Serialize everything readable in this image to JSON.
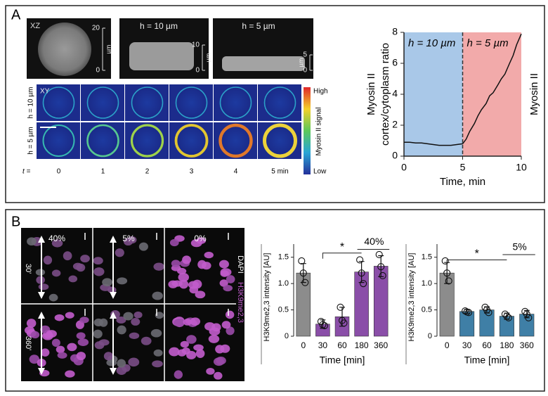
{
  "panel_a": {
    "label": "A",
    "xz": {
      "label": "XZ",
      "titles": [
        "h = 10 µm",
        "h = 5 µm"
      ],
      "scales": [
        {
          "top": "20",
          "bottom": "0",
          "unit": "µm"
        },
        {
          "top": "10",
          "bottom": "0",
          "unit": "µm"
        },
        {
          "top": "5",
          "bottom": "0",
          "unit": "µm"
        }
      ]
    },
    "xy": {
      "label": "XY",
      "rows": [
        "h = 10 µm",
        "h = 5 µm"
      ],
      "t_label": "t =",
      "times": [
        "0",
        "1",
        "2",
        "3",
        "4",
        "5 min"
      ],
      "colorbar": {
        "high": "High",
        "title": "Myosin II signal",
        "low": "Low"
      }
    }
  },
  "panel_b": {
    "label": "B",
    "columns": [
      "40%",
      "5%",
      "0%"
    ],
    "rows": [
      "30'",
      "360'"
    ],
    "stain": [
      "DAPI",
      "H3K9me2,3"
    ]
  },
  "chart_data": [
    {
      "type": "line",
      "y_label": [
        "Myosin II",
        "cortex/cytoplasm ratio"
      ],
      "x_label": "Time, min",
      "regions": [
        {
          "label": "h = 10 µm",
          "from": 0,
          "to": 5,
          "color": "#a9c8e8"
        },
        {
          "label": "h = 5 µm",
          "from": 5,
          "to": 10,
          "color": "#f2aaaa"
        }
      ],
      "x": [
        0,
        0.5,
        1,
        1.5,
        2,
        2.5,
        3,
        3.5,
        4,
        4.5,
        5,
        5.3,
        5.6,
        6,
        6.3,
        6.6,
        7,
        7.3,
        7.6,
        8,
        8.3,
        8.6,
        9,
        9.3,
        9.6,
        10
      ],
      "series": [
        {
          "name": "Myosin II",
          "color": "#111111",
          "values": [
            0.9,
            0.9,
            0.85,
            0.85,
            0.8,
            0.75,
            0.7,
            0.7,
            0.7,
            0.75,
            0.8,
            1.1,
            1.6,
            2.1,
            2.6,
            3.0,
            3.4,
            3.9,
            4.1,
            4.6,
            5.0,
            5.3,
            6.0,
            6.5,
            7.2,
            7.9
          ]
        }
      ],
      "xlim": [
        0,
        10
      ],
      "xticks": [
        0,
        5,
        10
      ],
      "ylim": [
        0,
        8
      ],
      "yticks": [
        0,
        2,
        4,
        6,
        8
      ]
    },
    {
      "type": "bar",
      "y_label": "H3K9me2,3 intensity [AU]",
      "x_label": "Time [min]",
      "categories": [
        "0",
        "30",
        "60",
        "180",
        "360"
      ],
      "values": [
        1.2,
        0.23,
        0.37,
        1.22,
        1.33
      ],
      "errors": [
        0.18,
        0.08,
        0.18,
        0.2,
        0.2
      ],
      "points": [
        [
          1.43,
          1.2,
          1.02
        ],
        [
          0.28,
          0.22,
          0.2
        ],
        [
          0.55,
          0.3,
          0.25
        ],
        [
          1.45,
          1.2,
          1.0
        ],
        [
          1.55,
          1.32,
          1.15
        ]
      ],
      "colors": [
        "#8c8c8c",
        "#8a4ea8",
        "#8a4ea8",
        "#8a4ea8",
        "#8a4ea8"
      ],
      "significance": "*",
      "group_label": "40%",
      "ylim": [
        0,
        1.75
      ],
      "yticks": [
        0,
        0.5,
        {
          "value": 1,
          "label": "1.0"
        },
        1.5
      ]
    },
    {
      "type": "bar",
      "y_label": "H3K9me2,3 intensity [AU]",
      "x_label": "Time [min]",
      "categories": [
        "0",
        "30",
        "60",
        "180",
        "360"
      ],
      "values": [
        1.2,
        0.47,
        0.5,
        0.38,
        0.42
      ],
      "errors": [
        0.2,
        0.04,
        0.06,
        0.06,
        0.07
      ],
      "points": [
        [
          1.43,
          1.2,
          1.05
        ],
        [
          0.48,
          0.46,
          0.45
        ],
        [
          0.55,
          0.5,
          0.45
        ],
        [
          0.42,
          0.38,
          0.35
        ],
        [
          0.47,
          0.42,
          0.35
        ]
      ],
      "colors": [
        "#8c8c8c",
        "#3f7fa6",
        "#3f7fa6",
        "#3f7fa6",
        "#3f7fa6"
      ],
      "significance": "*",
      "group_label": "5%",
      "ylim": [
        0,
        1.75
      ],
      "yticks": [
        0,
        0.5,
        {
          "value": 1,
          "label": "1.0"
        },
        1.5
      ]
    }
  ]
}
